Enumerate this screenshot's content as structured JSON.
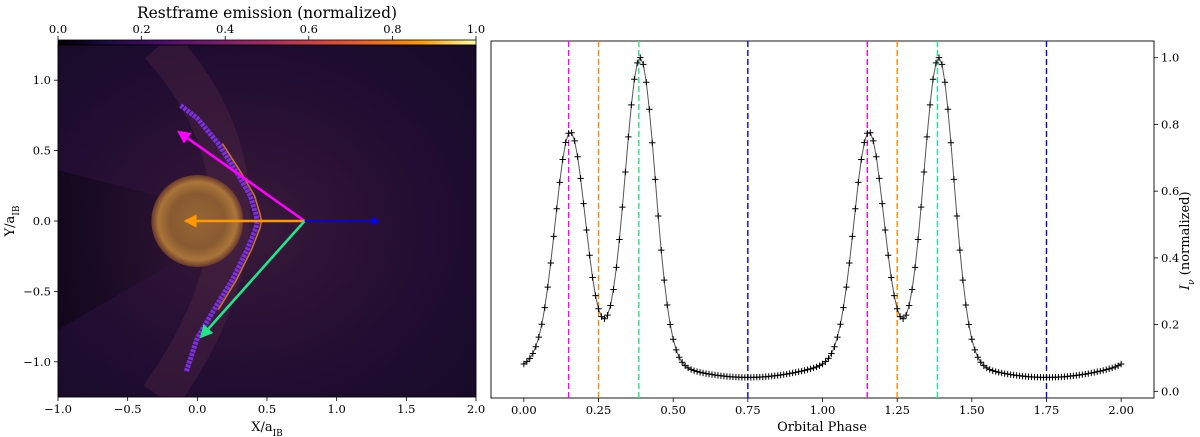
{
  "chart_data": [
    {
      "type": "heatmap",
      "title": "Restframe emission (normalized)",
      "xlabel": "X/a",
      "xlabel_sub": "IB",
      "ylabel": "Y/a",
      "ylabel_sub": "IB",
      "xlim": [
        -1.0,
        2.0
      ],
      "ylim": [
        -1.25,
        1.25
      ],
      "xticks": [
        "−1.0",
        "−0.5",
        "0.0",
        "0.5",
        "1.0",
        "1.5",
        "2.0"
      ],
      "xtick_values": [
        -1.0,
        -0.5,
        0.0,
        0.5,
        1.0,
        1.5,
        2.0
      ],
      "yticks": [
        "−1.0",
        "−0.5",
        "0.0",
        "0.5",
        "1.0"
      ],
      "ytick_values": [
        -1.0,
        -0.5,
        0.0,
        0.5,
        1.0
      ],
      "colorbar": {
        "range": [
          0.0,
          1.0
        ],
        "ticks": [
          "0.0",
          "0.2",
          "0.4",
          "0.6",
          "0.8",
          "1.0"
        ],
        "tick_values": [
          0.0,
          0.2,
          0.4,
          0.6,
          0.8,
          1.0
        ],
        "colormap": "inferno-like",
        "location": "top"
      },
      "star": {
        "center": [
          0.0,
          0.0
        ],
        "radius": 0.33
      },
      "shock_front": {
        "upper": [
          [
            -0.12,
            0.82
          ],
          [
            0.0,
            0.73
          ],
          [
            0.15,
            0.55
          ],
          [
            0.28,
            0.35
          ],
          [
            0.38,
            0.18
          ],
          [
            0.42,
            0.05
          ],
          [
            0.43,
            0.0
          ]
        ],
        "lower": [
          [
            0.43,
            0.0
          ],
          [
            0.42,
            -0.05
          ],
          [
            0.36,
            -0.2
          ],
          [
            0.25,
            -0.42
          ],
          [
            0.12,
            -0.63
          ],
          [
            0.0,
            -0.83
          ],
          [
            -0.08,
            -1.07
          ]
        ]
      },
      "arrows": [
        {
          "color": "#ff00ff",
          "from": [
            0.77,
            0.0
          ],
          "to": [
            -0.13,
            0.63
          ]
        },
        {
          "color": "#ff9900",
          "from": [
            0.77,
            0.0
          ],
          "to": [
            -0.08,
            0.0
          ]
        },
        {
          "color": "#22e58a",
          "from": [
            0.77,
            0.0
          ],
          "to": [
            0.03,
            -0.82
          ]
        },
        {
          "color": "#0000ff",
          "from": [
            0.77,
            0.0
          ],
          "to": [
            1.3,
            0.0
          ]
        }
      ]
    },
    {
      "type": "line",
      "xlabel": "Orbital Phase",
      "ylabel": "I",
      "ylabel_sub": "ν",
      "ylabel_suffix": " (normalized)",
      "xlim": [
        -0.11,
        2.11
      ],
      "ylim": [
        -0.02,
        1.05
      ],
      "xticks": [
        "0.00",
        "0.25",
        "0.50",
        "0.75",
        "1.00",
        "1.25",
        "1.50",
        "1.75",
        "2.00"
      ],
      "xtick_values": [
        0.0,
        0.25,
        0.5,
        0.75,
        1.0,
        1.25,
        1.5,
        1.75,
        2.0
      ],
      "yticks": [
        "0.0",
        "0.2",
        "0.4",
        "0.6",
        "0.8",
        "1.0"
      ],
      "ytick_values": [
        0.0,
        0.2,
        0.4,
        0.6,
        0.8,
        1.0
      ],
      "marker": "+",
      "line_color": "#555555",
      "marker_color": "#000000",
      "phase_samples": 200,
      "baseline": 0.03,
      "peaks": [
        {
          "phase": 0.155,
          "height": 0.72,
          "width": 0.05
        },
        {
          "phase": 0.39,
          "height": 0.97,
          "width": 0.05
        },
        {
          "phase": 0.25,
          "height": 0.1,
          "width": 0.22
        }
      ],
      "vlines": [
        {
          "x": 0.15,
          "color": "#ff00ff"
        },
        {
          "x": 0.25,
          "color": "#ff8800"
        },
        {
          "x": 0.385,
          "color": "#22e58a"
        },
        {
          "x": 0.75,
          "color": "#0000ee"
        },
        {
          "x": 1.15,
          "color": "#ff00ff"
        },
        {
          "x": 1.25,
          "color": "#ff8800"
        },
        {
          "x": 1.385,
          "color": "#22e58a"
        },
        {
          "x": 1.75,
          "color": "#0000ee"
        }
      ]
    }
  ]
}
